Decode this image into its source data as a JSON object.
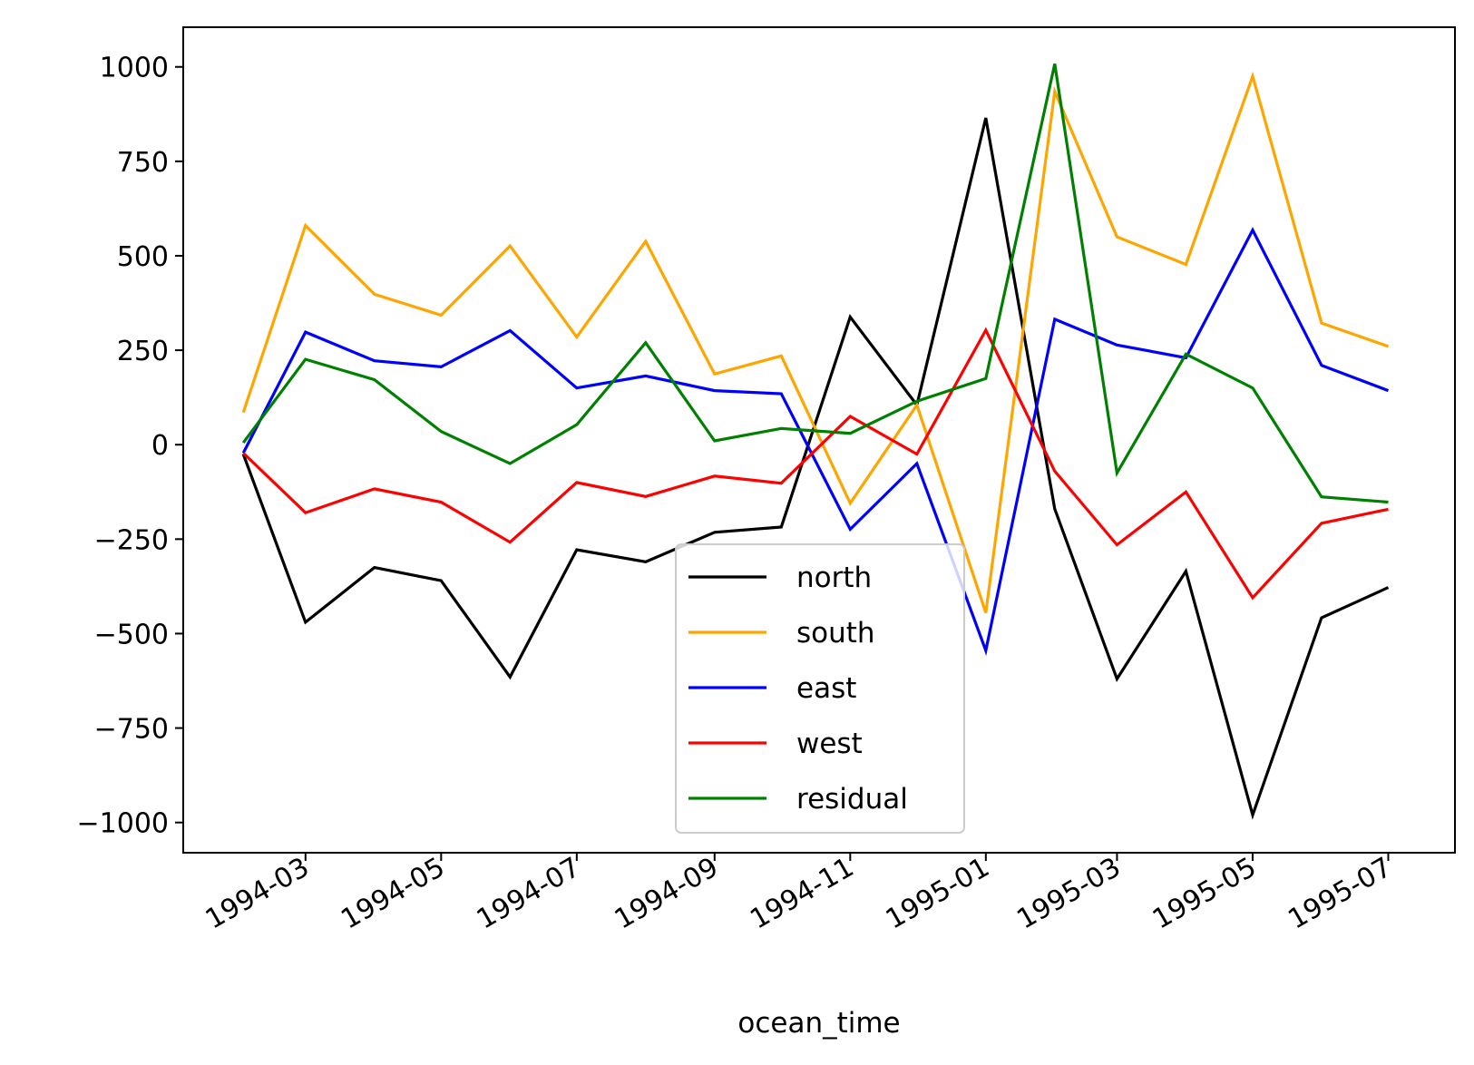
{
  "chart_data": {
    "type": "line",
    "title": "",
    "xlabel": "ocean_time",
    "ylabel": "",
    "x": [
      "1994-02",
      "1994-03",
      "1994-04",
      "1994-05",
      "1994-06",
      "1994-07",
      "1994-08",
      "1994-09",
      "1994-10",
      "1994-11",
      "1994-12",
      "1995-01",
      "1995-02",
      "1995-03",
      "1995-04",
      "1995-05",
      "1995-06",
      "1995-07"
    ],
    "x_ticks": [
      "1994-03",
      "1994-05",
      "1994-07",
      "1994-09",
      "1994-11",
      "1995-01",
      "1995-03",
      "1995-05",
      "1995-07"
    ],
    "y_ticks": [
      1000,
      750,
      500,
      250,
      0,
      -250,
      -500,
      -750,
      -1000
    ],
    "y_tick_labels": [
      "1000",
      "750",
      "500",
      "250",
      "0",
      "−250",
      "−500",
      "−750",
      "−1000"
    ],
    "ylim": [
      -1080,
      1105
    ],
    "xlim": [
      "1994-01-05",
      "1995-07-31"
    ],
    "grid": false,
    "legend_position": "lower-center",
    "series": [
      {
        "name": "north",
        "color": "#000000",
        "values": [
          -25,
          -470,
          -325,
          -360,
          -615,
          -278,
          -310,
          -232,
          -218,
          338,
          105,
          865,
          -170,
          -620,
          -335,
          -980,
          -458,
          -378
        ]
      },
      {
        "name": "south",
        "color": "#ffa500",
        "values": [
          85,
          580,
          398,
          343,
          526,
          285,
          538,
          187,
          235,
          -155,
          105,
          -445,
          935,
          550,
          477,
          975,
          322,
          260
        ]
      },
      {
        "name": "east",
        "color": "#0000ff",
        "values": [
          -22,
          298,
          222,
          206,
          302,
          150,
          182,
          143,
          135,
          -224,
          -50,
          -545,
          332,
          264,
          230,
          568,
          210,
          143
        ]
      },
      {
        "name": "west",
        "color": "#ff0000",
        "values": [
          -22,
          -180,
          -117,
          -152,
          -258,
          -100,
          -137,
          -83,
          -102,
          75,
          -25,
          303,
          -70,
          -265,
          -125,
          -405,
          -208,
          -171
        ]
      },
      {
        "name": "residual",
        "color": "#008000",
        "values": [
          5,
          226,
          172,
          35,
          -50,
          53,
          270,
          10,
          43,
          30,
          115,
          175,
          1008,
          -75,
          240,
          150,
          -138,
          -152
        ]
      }
    ]
  }
}
